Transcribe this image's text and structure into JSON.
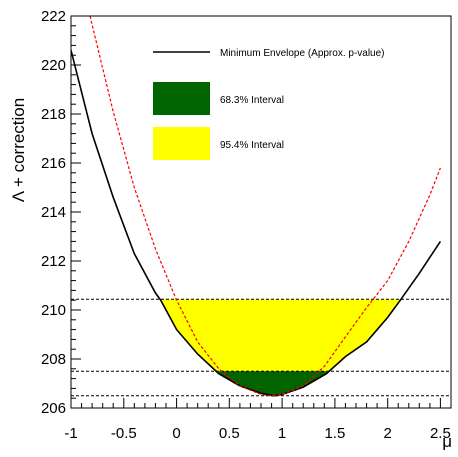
{
  "chart_data": {
    "type": "line",
    "title": "",
    "xlabel": "μ",
    "ylabel": "Λ + correction",
    "xlim": [
      -1,
      2.6
    ],
    "ylim": [
      206,
      222
    ],
    "grid": false,
    "x_ticks": [
      {
        "value": -1,
        "label": "-1"
      },
      {
        "value": -0.5,
        "label": "-0.5"
      },
      {
        "value": 0,
        "label": "0"
      },
      {
        "value": 0.5,
        "label": "0.5"
      },
      {
        "value": 1,
        "label": "1"
      },
      {
        "value": 1.5,
        "label": "1.5"
      },
      {
        "value": 2,
        "label": "2"
      },
      {
        "value": 2.5,
        "label": "2.5"
      }
    ],
    "y_ticks": [
      {
        "value": 206,
        "label": "206"
      },
      {
        "value": 208,
        "label": "208"
      },
      {
        "value": 210,
        "label": "210"
      },
      {
        "value": 212,
        "label": "212"
      },
      {
        "value": 214,
        "label": "214"
      },
      {
        "value": 216,
        "label": "216"
      },
      {
        "value": 218,
        "label": "218"
      },
      {
        "value": 220,
        "label": "220"
      },
      {
        "value": 222,
        "label": "222"
      }
    ],
    "series": [
      {
        "name": "Minimum Envelope (Approx. p-value)",
        "color": "#000000",
        "style": "solid",
        "x": [
          -1.0,
          -0.8,
          -0.6,
          -0.4,
          -0.2,
          -0.15,
          0.0,
          0.2,
          0.4,
          0.6,
          0.8,
          0.92,
          1.0,
          1.2,
          1.42,
          1.6,
          1.8,
          2.0,
          2.12,
          2.3,
          2.5
        ],
        "y": [
          220.6,
          217.2,
          214.6,
          212.3,
          210.7,
          210.4,
          209.2,
          208.2,
          207.4,
          206.9,
          206.6,
          206.5,
          206.55,
          206.85,
          207.4,
          208.1,
          208.7,
          209.7,
          210.4,
          211.5,
          212.8
        ]
      },
      {
        "name": "",
        "color": "#ff0000",
        "style": "dashed",
        "x": [
          -0.82,
          -0.6,
          -0.4,
          -0.2,
          0.0,
          0.2,
          0.4,
          0.6,
          0.8,
          0.9,
          1.0,
          1.2,
          1.4,
          1.6,
          1.8,
          2.0,
          2.2,
          2.4,
          2.5
        ],
        "y": [
          222.0,
          218.1,
          215.0,
          212.5,
          210.4,
          208.7,
          207.6,
          206.9,
          206.55,
          206.5,
          206.55,
          206.9,
          207.7,
          208.9,
          210.1,
          211.2,
          212.8,
          214.7,
          215.8
        ]
      }
    ],
    "threshold_lines": [
      206.5,
      207.5,
      210.44
    ],
    "bands": [
      {
        "name": "95.4% Interval",
        "color": "#ffff00",
        "x_range": [
          -0.15,
          2.12
        ],
        "y_top": 210.44
      },
      {
        "name": "68.3% Interval",
        "color": "#006400",
        "x_range": [
          0.4,
          1.42
        ],
        "y_top": 207.5
      }
    ],
    "legend": {
      "position": "top-right",
      "entries": [
        {
          "label": "Minimum Envelope (Approx. p-value)",
          "kind": "line",
          "color": "#000000"
        },
        {
          "label": "68.3% Interval",
          "kind": "box",
          "color": "#006400"
        },
        {
          "label": "95.4% Interval",
          "kind": "box",
          "color": "#ffff00"
        }
      ]
    }
  }
}
